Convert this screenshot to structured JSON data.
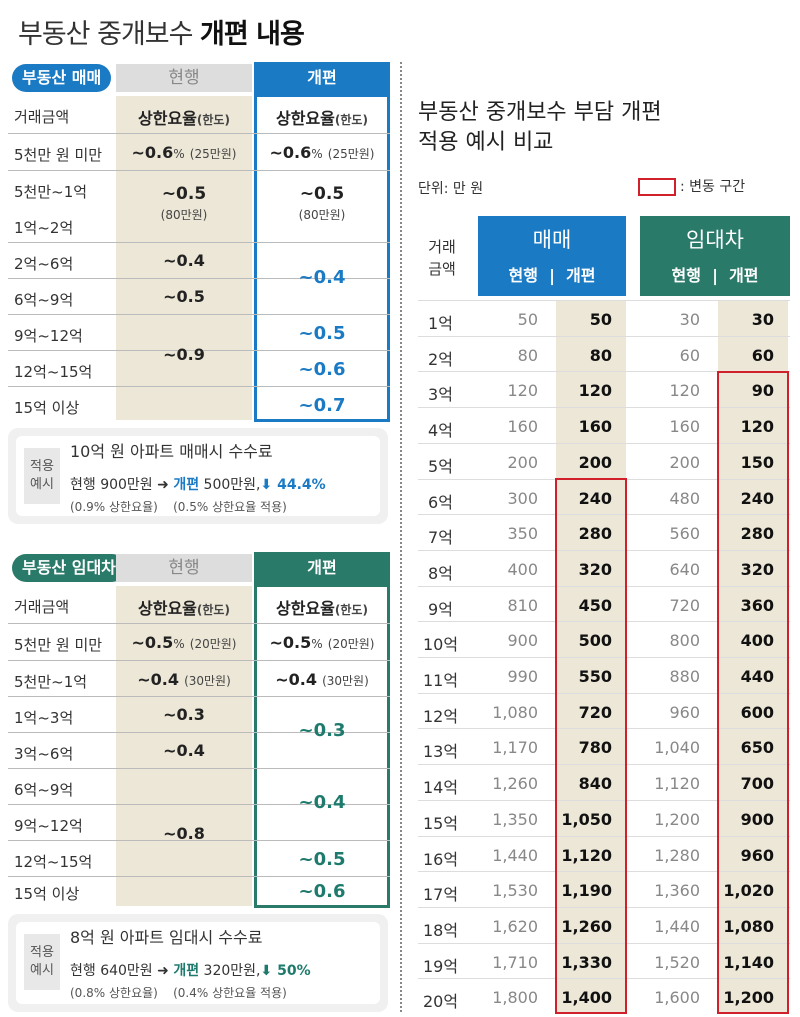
{
  "title": {
    "normal": "부동산 중개보수 ",
    "bold": "개편 내용"
  },
  "sale_table": {
    "tag": "부동산 매매",
    "current": "현행",
    "revised": "개편",
    "col1": "거래금액",
    "col_rate": "상한요율",
    "col_limit": "(한도)",
    "rows": [
      {
        "range": "5천만 원 미만",
        "cur": "~0.6",
        "cur_unit": "%",
        "cur_cap": "(25만원)",
        "new": "~0.6",
        "new_unit": "%",
        "new_cap": "(25만원)"
      },
      {
        "range": "5천만~1억"
      },
      {
        "range": "1억~2억"
      },
      {
        "range": "2억~6억"
      },
      {
        "range": "6억~9억"
      },
      {
        "range": "9억~12억"
      },
      {
        "range": "12억~15억"
      },
      {
        "range": "15억 이상"
      }
    ],
    "merged": {
      "cur_a": "~0.5",
      "cur_a_cap": "(80만원)",
      "new_a": "~0.5",
      "new_a_cap": "(80만원)",
      "cur_b": "~0.4",
      "cur_c": "~0.5",
      "cur_d": "~0.9",
      "new_b": "~0.4",
      "new_c": "~0.5",
      "new_d": "~0.6",
      "new_e": "~0.7"
    },
    "note": {
      "label1": "적용",
      "label2": "예시",
      "title": "10억 원 아파트 매매시 수수료",
      "cur": "현행 900만원",
      "arrow": "➜",
      "rev_word": "개편",
      "rev": " 500만원,",
      "down": "⬇ 44.4%",
      "cur_sub": "(0.9% 상한요율)",
      "rev_sub": "(0.5% 상한요율 적용)"
    }
  },
  "lease_table": {
    "tag": "부동산 임대차",
    "current": "현행",
    "revised": "개편",
    "col1": "거래금액",
    "col_rate": "상한요율",
    "col_limit": "(한도)",
    "rows": [
      {
        "range": "5천만 원 미만",
        "cur": "~0.5",
        "cur_unit": "%",
        "cur_cap": "(20만원)",
        "new": "~0.5",
        "new_unit": "%",
        "new_cap": "(20만원)"
      },
      {
        "range": "5천만~1억",
        "cur": "~0.4",
        "cur_cap": "(30만원)",
        "new": "~0.4",
        "new_cap": "(30만원)"
      },
      {
        "range": "1억~3억"
      },
      {
        "range": "3억~6억"
      },
      {
        "range": "6억~9억"
      },
      {
        "range": "9억~12억"
      },
      {
        "range": "12억~15억"
      },
      {
        "range": "15억 이상"
      }
    ],
    "merged": {
      "cur_a": "~0.3",
      "cur_b": "~0.4",
      "cur_c": "~0.8",
      "new_a": "~0.3",
      "new_b": "~0.4",
      "new_c": "~0.5",
      "new_d": "~0.6"
    },
    "note": {
      "label1": "적용",
      "label2": "예시",
      "title": "8억 원 아파트 임대시 수수료",
      "cur": "현행 640만원",
      "arrow": "➜",
      "rev_word": "개편",
      "rev": " 320만원,",
      "down": "⬇ 50%",
      "cur_sub": "(0.8% 상한요율)",
      "rev_sub": "(0.4% 상한요율 적용)"
    }
  },
  "compare": {
    "title1": "부동산 중개보수 부담 개편",
    "title2": "적용 예시 비교",
    "unit": "단위: 만 원",
    "legend": ": 변동 구간",
    "label_head1": "거래",
    "label_head2": "금액",
    "sale": "매매",
    "lease": "임대차",
    "cur": "현행",
    "new": "개편",
    "sep": "|",
    "rows": [
      [
        "1억",
        "50",
        "50",
        "30",
        "30"
      ],
      [
        "2억",
        "80",
        "80",
        "60",
        "60"
      ],
      [
        "3억",
        "120",
        "120",
        "120",
        "90"
      ],
      [
        "4억",
        "160",
        "160",
        "160",
        "120"
      ],
      [
        "5억",
        "200",
        "200",
        "200",
        "150"
      ],
      [
        "6억",
        "300",
        "240",
        "480",
        "240"
      ],
      [
        "7억",
        "350",
        "280",
        "560",
        "280"
      ],
      [
        "8억",
        "400",
        "320",
        "640",
        "320"
      ],
      [
        "9억",
        "810",
        "450",
        "720",
        "360"
      ],
      [
        "10억",
        "900",
        "500",
        "800",
        "400"
      ],
      [
        "11억",
        "990",
        "550",
        "880",
        "440"
      ],
      [
        "12억",
        "1,080",
        "720",
        "960",
        "600"
      ],
      [
        "13억",
        "1,170",
        "780",
        "1,040",
        "650"
      ],
      [
        "14억",
        "1,260",
        "840",
        "1,120",
        "700"
      ],
      [
        "15억",
        "1,350",
        "1,050",
        "1,200",
        "900"
      ],
      [
        "16억",
        "1,440",
        "1,120",
        "1,280",
        "960"
      ],
      [
        "17억",
        "1,530",
        "1,190",
        "1,360",
        "1,020"
      ],
      [
        "18억",
        "1,620",
        "1,260",
        "1,440",
        "1,080"
      ],
      [
        "19억",
        "1,710",
        "1,330",
        "1,520",
        "1,140"
      ],
      [
        "20억",
        "1,800",
        "1,400",
        "1,600",
        "1,200"
      ]
    ]
  },
  "colors": {
    "sale": "#1a7ac4",
    "lease": "#2a7a6a",
    "change": "#d0202c",
    "beige": "#ece7d6"
  }
}
